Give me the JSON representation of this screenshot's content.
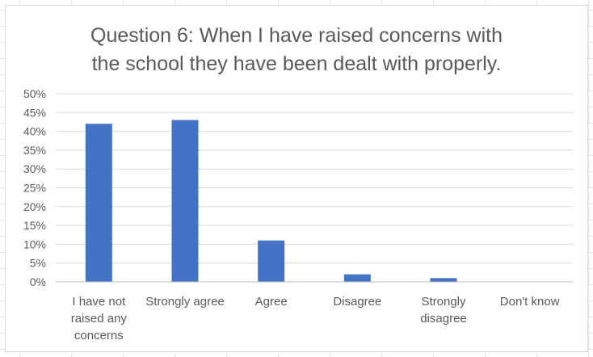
{
  "chart_data": {
    "type": "bar",
    "title_lines": [
      "Question 6: When I have raised concerns with",
      "the school they have been dealt with properly."
    ],
    "categories": [
      [
        "I have not",
        "raised any",
        "concerns"
      ],
      [
        "Strongly agree"
      ],
      [
        "Agree"
      ],
      [
        "Disagree"
      ],
      [
        "Strongly",
        "disagree"
      ],
      [
        "Don't know"
      ]
    ],
    "values": [
      0.42,
      0.43,
      0.11,
      0.02,
      0.01,
      0
    ],
    "ylim": [
      0,
      0.5
    ],
    "ytick_step": 0.05,
    "ytick_labels": [
      "0%",
      "5%",
      "10%",
      "15%",
      "20%",
      "25%",
      "30%",
      "35%",
      "40%",
      "45%",
      "50%"
    ],
    "grid": true,
    "legend": "none",
    "bar_color": "#4472C4",
    "grid_color": "#d9d9d9",
    "axis_color": "#bfbfbf"
  }
}
